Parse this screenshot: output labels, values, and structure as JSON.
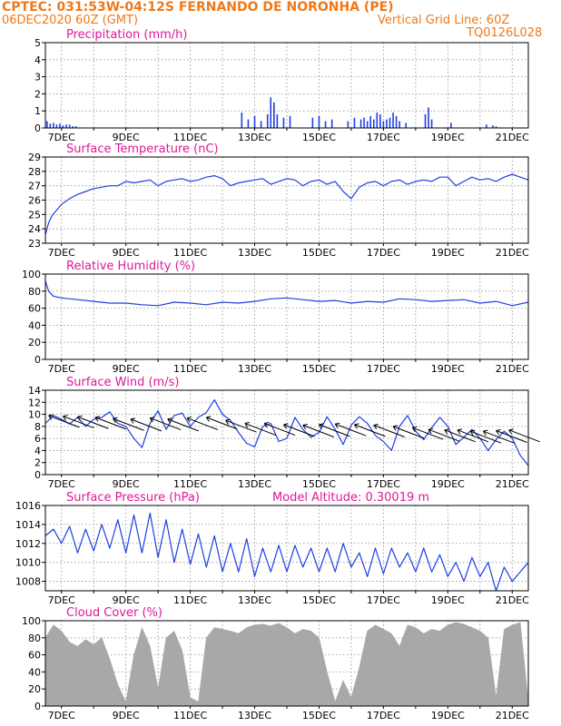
{
  "header": {
    "line1": "CPTEC:   031:53W-04:12S   FERNANDO DE NORONHA (PE)",
    "line2_left": "06DEC2020 60Z (GMT)",
    "line2_right": "Vertical Grid Line: 60Z",
    "line3_right": "TQ0126L028"
  },
  "colors": {
    "header": "#f07818",
    "panel_title": "#e0179a",
    "series": "#1f3fe0",
    "cloud": "#a8a8a8",
    "wind_arrow": "#000000",
    "grid": "#909090"
  },
  "date_ticks": [
    "7DEC",
    "9DEC",
    "11DEC",
    "13DEC",
    "15DEC",
    "17DEC",
    "19DEC",
    "21DEC"
  ],
  "chart_data": [
    {
      "type": "bar",
      "id": "precip",
      "title": "Precipitation  (mm/h)",
      "ylim": [
        0,
        5
      ],
      "yticks": [
        0,
        1,
        2,
        3,
        4,
        5
      ],
      "x_unit": "days since 06DEC2020 00Z",
      "x": [
        0.05,
        0.15,
        0.25,
        0.35,
        0.45,
        0.55,
        0.65,
        0.75,
        0.85,
        0.95,
        6.1,
        6.3,
        6.5,
        6.7,
        6.9,
        7.0,
        7.1,
        7.2,
        7.4,
        7.6,
        8.3,
        8.5,
        8.7,
        8.9,
        9.4,
        9.6,
        9.8,
        9.9,
        10.0,
        10.1,
        10.2,
        10.3,
        10.4,
        10.5,
        10.6,
        10.7,
        10.8,
        10.9,
        11.0,
        11.2,
        11.8,
        11.9,
        12.0,
        12.6,
        13.7,
        13.9,
        14.0
      ],
      "values": [
        0.4,
        0.25,
        0.3,
        0.2,
        0.25,
        0.15,
        0.2,
        0.2,
        0.1,
        0.1,
        0.9,
        0.5,
        0.7,
        0.4,
        0.8,
        1.8,
        1.5,
        0.8,
        0.6,
        0.7,
        0.6,
        0.7,
        0.4,
        0.5,
        0.4,
        0.6,
        0.5,
        0.6,
        0.4,
        0.7,
        0.5,
        0.9,
        0.8,
        0.4,
        0.5,
        0.6,
        0.9,
        0.7,
        0.4,
        0.3,
        0.8,
        1.2,
        0.5,
        0.3,
        0.2,
        0.15,
        0.1
      ]
    },
    {
      "type": "line",
      "id": "temp",
      "title": "Surface Temperature  (nC)",
      "ylim": [
        23,
        29
      ],
      "yticks": [
        23,
        24,
        25,
        26,
        27,
        28,
        29
      ],
      "x_unit": "days since 06DEC2020 00Z",
      "x": [
        0,
        0.1,
        0.2,
        0.35,
        0.5,
        0.75,
        1,
        1.25,
        1.5,
        1.75,
        2,
        2.25,
        2.5,
        2.75,
        3,
        3.25,
        3.5,
        3.75,
        4,
        4.25,
        4.5,
        4.75,
        5,
        5.25,
        5.5,
        5.75,
        6,
        6.25,
        6.5,
        6.75,
        7,
        7.25,
        7.5,
        7.75,
        8,
        8.25,
        8.5,
        8.75,
        9,
        9.25,
        9.5,
        9.75,
        10,
        10.25,
        10.5,
        10.75,
        11,
        11.25,
        11.5,
        11.75,
        12,
        12.25,
        12.5,
        12.75,
        13,
        13.25,
        13.5,
        13.75,
        14,
        14.25,
        14.5,
        14.75,
        15
      ],
      "values": [
        23.6,
        24.4,
        24.9,
        25.3,
        25.7,
        26.1,
        26.4,
        26.6,
        26.8,
        26.9,
        27.0,
        27.0,
        27.3,
        27.2,
        27.3,
        27.4,
        27.0,
        27.3,
        27.4,
        27.5,
        27.3,
        27.4,
        27.6,
        27.7,
        27.5,
        27.0,
        27.2,
        27.3,
        27.4,
        27.5,
        27.1,
        27.3,
        27.5,
        27.4,
        27.0,
        27.3,
        27.4,
        27.1,
        27.3,
        26.6,
        26.1,
        26.9,
        27.2,
        27.3,
        27.0,
        27.3,
        27.4,
        27.1,
        27.3,
        27.4,
        27.3,
        27.6,
        27.6,
        27.0,
        27.3,
        27.6,
        27.4,
        27.5,
        27.3,
        27.6,
        27.8,
        27.6,
        27.4
      ]
    },
    {
      "type": "line",
      "id": "rh",
      "title": "Relative Humidity  (%)",
      "ylim": [
        0,
        100
      ],
      "yticks": [
        0,
        20,
        40,
        60,
        80,
        100
      ],
      "x_unit": "days since 06DEC2020 00Z",
      "x": [
        0,
        0.1,
        0.25,
        0.5,
        1,
        1.5,
        2,
        2.5,
        3,
        3.5,
        4,
        4.5,
        5,
        5.5,
        6,
        6.5,
        7,
        7.5,
        8,
        8.5,
        9,
        9.5,
        10,
        10.5,
        11,
        11.5,
        12,
        12.5,
        13,
        13.5,
        14,
        14.5,
        15
      ],
      "values": [
        92,
        80,
        74,
        72,
        70,
        68,
        66,
        66,
        64,
        63,
        67,
        66,
        64,
        67,
        66,
        68,
        71,
        72,
        70,
        68,
        69,
        66,
        68,
        67,
        71,
        70,
        68,
        69,
        70,
        66,
        68,
        63,
        67
      ]
    },
    {
      "type": "line",
      "id": "wind",
      "title": "Surface Wind  (m/s)",
      "ylim": [
        0,
        14
      ],
      "yticks": [
        0,
        2,
        4,
        6,
        8,
        10,
        12,
        14
      ],
      "x_unit": "days since 06DEC2020 00Z",
      "x": [
        0,
        0.25,
        0.5,
        0.75,
        1,
        1.25,
        1.5,
        1.75,
        2,
        2.25,
        2.5,
        2.75,
        3,
        3.25,
        3.5,
        3.75,
        4,
        4.25,
        4.5,
        4.75,
        5,
        5.25,
        5.5,
        5.75,
        6,
        6.25,
        6.5,
        6.75,
        7,
        7.25,
        7.5,
        7.75,
        8,
        8.25,
        8.5,
        8.75,
        9,
        9.25,
        9.5,
        9.75,
        10,
        10.25,
        10.5,
        10.75,
        11,
        11.25,
        11.5,
        11.75,
        12,
        12.25,
        12.5,
        12.75,
        13,
        13.25,
        13.5,
        13.75,
        14,
        14.25,
        14.5,
        14.75,
        15
      ],
      "values": [
        8.5,
        9.8,
        9.2,
        8.4,
        9.5,
        8.0,
        9.2,
        9.5,
        10.4,
        8.5,
        8.0,
        6.0,
        4.5,
        8.5,
        10.6,
        7.5,
        9.8,
        10.2,
        8.0,
        9.5,
        10.3,
        12.4,
        10.0,
        9.0,
        7.0,
        5.2,
        4.6,
        8.0,
        8.5,
        5.5,
        6.0,
        9.5,
        7.5,
        6.2,
        7.0,
        9.6,
        7.5,
        5.0,
        8.2,
        9.6,
        8.5,
        6.5,
        5.5,
        4.0,
        8.0,
        9.8,
        7.2,
        5.8,
        7.8,
        9.5,
        8.0,
        5.0,
        6.2,
        7.5,
        6.0,
        4.0,
        5.8,
        7.2,
        6.0,
        3.2,
        1.5
      ],
      "arrows": {
        "x": [
          0.1,
          0.55,
          1.0,
          1.55,
          2.1,
          2.65,
          3.25,
          3.8,
          4.4,
          5.0,
          5.6,
          6.2,
          6.8,
          7.4,
          8.0,
          8.5,
          9.0,
          9.6,
          10.2,
          10.8,
          11.4,
          11.9,
          12.4,
          12.8,
          13.2,
          13.6,
          14.0,
          14.4
        ],
        "y": [
          9.8,
          9.7,
          9.6,
          9.5,
          9.3,
          9.2,
          9.4,
          9.2,
          9.4,
          9.5,
          9.0,
          8.5,
          8.5,
          8.3,
          8.2,
          8.3,
          8.4,
          8.3,
          8.2,
          8.0,
          7.8,
          7.5,
          7.4,
          7.4,
          7.2,
          7.2,
          7.3,
          7.4
        ]
      }
    },
    {
      "type": "line",
      "id": "pres",
      "title": "Surface Pressure  (hPa)",
      "annotation": "Model Altitude: 0.30019  m",
      "ylim": [
        1007,
        1016
      ],
      "yticks": [
        1008,
        1010,
        1012,
        1014,
        1016
      ],
      "x_unit": "days since 06DEC2020 00Z",
      "x": [
        0,
        0.25,
        0.5,
        0.75,
        1,
        1.25,
        1.5,
        1.75,
        2,
        2.25,
        2.5,
        2.75,
        3,
        3.25,
        3.5,
        3.75,
        4,
        4.25,
        4.5,
        4.75,
        5,
        5.25,
        5.5,
        5.75,
        6,
        6.25,
        6.5,
        6.75,
        7,
        7.25,
        7.5,
        7.75,
        8,
        8.25,
        8.5,
        8.75,
        9,
        9.25,
        9.5,
        9.75,
        10,
        10.25,
        10.5,
        10.75,
        11,
        11.25,
        11.5,
        11.75,
        12,
        12.25,
        12.5,
        12.75,
        13,
        13.25,
        13.5,
        13.75,
        14,
        14.25,
        14.5,
        14.75,
        15
      ],
      "values": [
        1012.8,
        1013.5,
        1012.0,
        1013.8,
        1011.0,
        1013.5,
        1011.2,
        1014.0,
        1011.5,
        1014.5,
        1011.0,
        1015.0,
        1011.0,
        1015.2,
        1010.5,
        1014.5,
        1010.0,
        1013.5,
        1009.8,
        1013.0,
        1009.5,
        1012.8,
        1009.0,
        1012.0,
        1009.0,
        1012.5,
        1008.5,
        1011.5,
        1009.0,
        1011.8,
        1009.0,
        1011.8,
        1009.5,
        1011.5,
        1009.0,
        1011.5,
        1009.0,
        1012.0,
        1009.5,
        1011.0,
        1008.5,
        1011.5,
        1008.8,
        1011.5,
        1009.5,
        1011.0,
        1009.0,
        1011.5,
        1009.0,
        1010.8,
        1008.5,
        1010.0,
        1008.0,
        1010.5,
        1008.5,
        1010.0,
        1007.0,
        1009.5,
        1008.0,
        1009.0,
        1010.0
      ]
    },
    {
      "type": "area",
      "id": "cloud",
      "title": "Cloud Cover  (%)",
      "ylim": [
        0,
        100
      ],
      "yticks": [
        0,
        20,
        40,
        60,
        80,
        100
      ],
      "x_unit": "days since 06DEC2020 00Z",
      "x": [
        0,
        0.25,
        0.5,
        0.75,
        1,
        1.25,
        1.5,
        1.75,
        2,
        2.25,
        2.5,
        2.75,
        3,
        3.25,
        3.5,
        3.75,
        4,
        4.25,
        4.5,
        4.75,
        5,
        5.25,
        5.5,
        5.75,
        6,
        6.25,
        6.5,
        6.75,
        7,
        7.25,
        7.5,
        7.75,
        8,
        8.25,
        8.5,
        8.75,
        9,
        9.25,
        9.5,
        9.75,
        10,
        10.25,
        10.5,
        10.75,
        11,
        11.25,
        11.5,
        11.75,
        12,
        12.25,
        12.5,
        12.75,
        13,
        13.25,
        13.5,
        13.75,
        14,
        14.25,
        14.5,
        14.75,
        15
      ],
      "values": [
        80,
        95,
        88,
        75,
        70,
        78,
        72,
        80,
        55,
        25,
        5,
        60,
        92,
        70,
        20,
        80,
        88,
        65,
        10,
        5,
        80,
        92,
        90,
        88,
        85,
        92,
        95,
        96,
        94,
        97,
        92,
        85,
        90,
        88,
        80,
        40,
        5,
        30,
        10,
        45,
        88,
        95,
        90,
        85,
        70,
        95,
        92,
        85,
        90,
        88,
        95,
        98,
        96,
        92,
        88,
        80,
        10,
        90,
        95,
        98,
        5
      ]
    }
  ]
}
